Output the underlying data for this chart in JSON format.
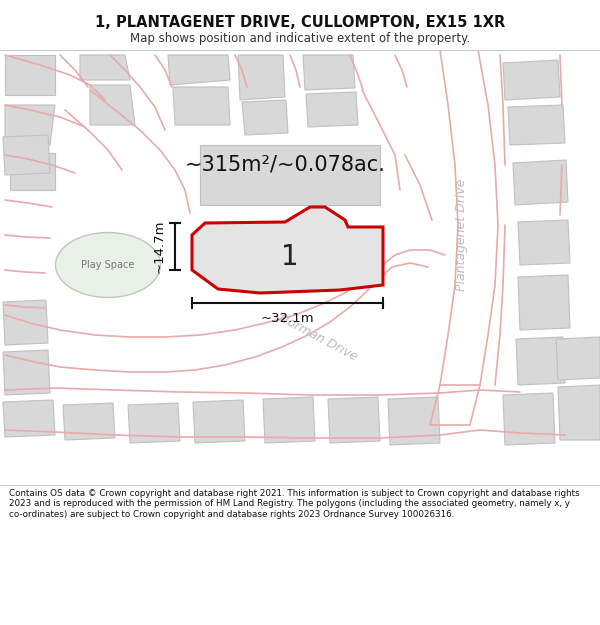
{
  "title": "1, PLANTAGENET DRIVE, CULLOMPTON, EX15 1XR",
  "subtitle": "Map shows position and indicative extent of the property.",
  "footer": "Contains OS data © Crown copyright and database right 2021. This information is subject to Crown copyright and database rights 2023 and is reproduced with the permission of HM Land Registry. The polygons (including the associated geometry, namely x, y co-ordinates) are subject to Crown copyright and database rights 2023 Ordnance Survey 100026316.",
  "area_label": "~315m²/~0.078ac.",
  "width_label": "~32.1m",
  "height_label": "~14.7m",
  "number_label": "1",
  "play_space_label": "Play Space",
  "road_label_1": "Plantagenet Drive",
  "road_label_2": "Norman Drive",
  "bg_color": "#ffffff",
  "plot_fill": "#e4e4e4",
  "plot_outline": "#cc0000",
  "play_space_fill": "#e8f0e8",
  "play_space_outline": "#b8ccb8",
  "road_color": "#e8aaaa",
  "building_fill": "#d8d8d8",
  "building_outline": "#c0c0c0",
  "dim_color": "#111111",
  "text_color": "#222222",
  "road_text_color": "#bbbbbb"
}
